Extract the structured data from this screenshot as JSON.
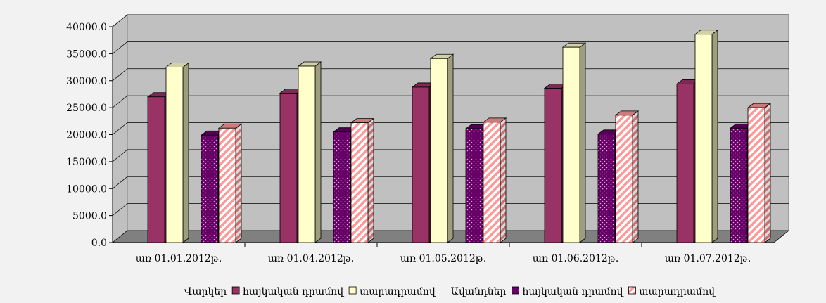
{
  "chart_data": {
    "type": "bar",
    "categories": [
      "առ 01.01.2012թ.",
      "առ 01.04.2012թ.",
      "առ 01.05.2012թ.",
      "առ 01.06.2012թ.",
      "առ 01.07.2012թ."
    ],
    "groups": [
      {
        "label": "Վարկեր",
        "series": [
          {
            "name": "հայկական դրամով",
            "values": [
              27000,
              27700,
              28800,
              28600,
              29400
            ],
            "color": "#993366",
            "pattern": "solid"
          },
          {
            "name": "տարադրամով",
            "values": [
              32500,
              32700,
              34100,
              36200,
              38600
            ],
            "color": "#ffffcc",
            "pattern": "solid"
          }
        ]
      },
      {
        "label": "Ավանդներ",
        "series": [
          {
            "name": "հայկական դրամով",
            "values": [
              19900,
              20500,
              21100,
              20100,
              21200
            ],
            "color": "#660066",
            "pattern": "dots"
          },
          {
            "name": "տարադրամով",
            "values": [
              21200,
              22200,
              22300,
              23600,
              25000
            ],
            "color": "#ff9999",
            "pattern": "diagonal-stripes"
          }
        ]
      }
    ],
    "y_ticks": [
      "0.0",
      "5000.0",
      "10000.0",
      "15000.0",
      "20000.0",
      "25000.0",
      "30000.0",
      "35000.0",
      "40000.0"
    ],
    "ylim": [
      0,
      40000
    ],
    "grid": true,
    "legend_position": "bottom",
    "plot_background": "#c0c0c0",
    "floor_color": "#808080"
  }
}
